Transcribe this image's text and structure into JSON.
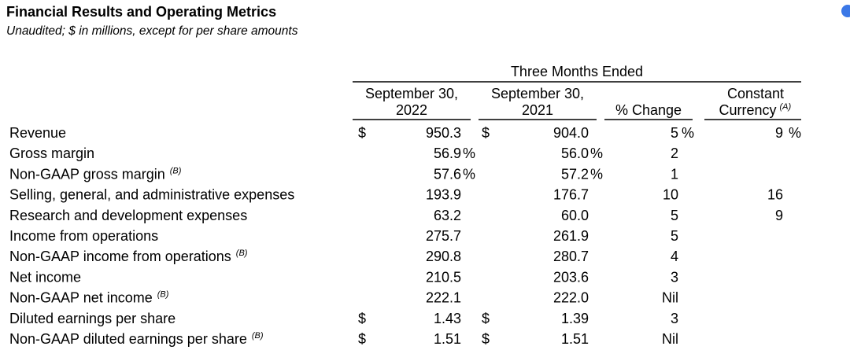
{
  "header": {
    "title": "Financial Results and Operating Metrics",
    "subtitle": "Unaudited; $ in millions, except for per share amounts"
  },
  "table": {
    "group_header": "Three Months Ended",
    "columns": [
      {
        "lines": [
          "September 30,",
          "2022"
        ]
      },
      {
        "lines": [
          "September 30,",
          "2021"
        ]
      },
      {
        "lines": [
          "% Change"
        ]
      },
      {
        "lines": [
          "Constant",
          "Currency"
        ],
        "note": "(A)"
      }
    ],
    "rows": [
      {
        "label": "Revenue",
        "cells": {
          "y2022": {
            "currency": "$",
            "value": "950.3"
          },
          "y2021": {
            "currency": "$",
            "value": "904.0"
          },
          "change": {
            "value": "5",
            "unit": "%"
          },
          "constant_currency": {
            "value": "9",
            "unit": "%"
          }
        }
      },
      {
        "label": "Gross margin",
        "cells": {
          "y2022": {
            "value": "56.9",
            "unit": "%"
          },
          "y2021": {
            "value": "56.0",
            "unit": "%"
          },
          "change": {
            "value": "2"
          }
        }
      },
      {
        "label": "Non-GAAP gross margin",
        "note": "(B)",
        "cells": {
          "y2022": {
            "value": "57.6",
            "unit": "%"
          },
          "y2021": {
            "value": "57.2",
            "unit": "%"
          },
          "change": {
            "value": "1"
          }
        }
      },
      {
        "label": "Selling, general, and administrative expenses",
        "cells": {
          "y2022": {
            "value": "193.9"
          },
          "y2021": {
            "value": "176.7"
          },
          "change": {
            "value": "10"
          },
          "constant_currency": {
            "value": "16"
          }
        }
      },
      {
        "label": "Research and development expenses",
        "cells": {
          "y2022": {
            "value": "63.2"
          },
          "y2021": {
            "value": "60.0"
          },
          "change": {
            "value": "5"
          },
          "constant_currency": {
            "value": "9"
          }
        }
      },
      {
        "label": "Income from operations",
        "cells": {
          "y2022": {
            "value": "275.7"
          },
          "y2021": {
            "value": "261.9"
          },
          "change": {
            "value": "5"
          }
        }
      },
      {
        "label": "Non-GAAP income from operations",
        "note": "(B)",
        "cells": {
          "y2022": {
            "value": "290.8"
          },
          "y2021": {
            "value": "280.7"
          },
          "change": {
            "value": "4"
          }
        }
      },
      {
        "label": "Net income",
        "cells": {
          "y2022": {
            "value": "210.5"
          },
          "y2021": {
            "value": "203.6"
          },
          "change": {
            "value": "3"
          }
        }
      },
      {
        "label": "Non-GAAP net income",
        "note": "(B)",
        "cells": {
          "y2022": {
            "value": "222.1"
          },
          "y2021": {
            "value": "222.0"
          },
          "change": {
            "value": "Nil"
          }
        }
      },
      {
        "label": "Diluted earnings per share",
        "cells": {
          "y2022": {
            "currency": "$",
            "value": "1.43"
          },
          "y2021": {
            "currency": "$",
            "value": "1.39"
          },
          "change": {
            "value": "3"
          }
        }
      },
      {
        "label": "Non-GAAP diluted earnings per share",
        "note": "(B)",
        "cells": {
          "y2022": {
            "currency": "$",
            "value": "1.51"
          },
          "y2021": {
            "currency": "$",
            "value": "1.51"
          },
          "change": {
            "value": "Nil"
          }
        }
      }
    ]
  }
}
